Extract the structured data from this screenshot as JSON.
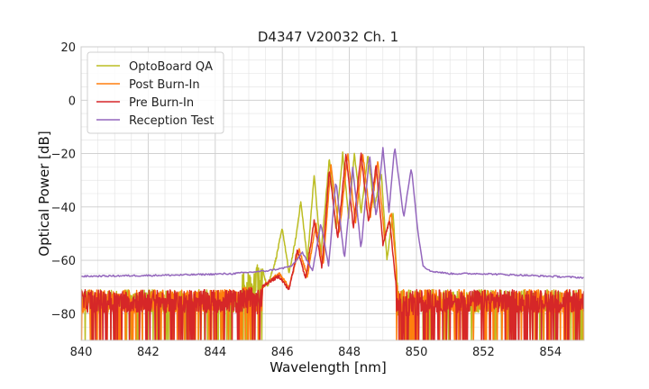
{
  "chart_data": {
    "type": "line",
    "title": "D4347 V20032 Ch. 1",
    "xlabel": "Wavelength [nm]",
    "ylabel": "Optical Power [dB]",
    "xlim": [
      840,
      855
    ],
    "ylim": [
      -90,
      20
    ],
    "xticks": [
      840,
      842,
      844,
      846,
      848,
      850,
      852,
      854
    ],
    "yticks": [
      20,
      0,
      -20,
      -40,
      -60,
      -80
    ],
    "grid": true,
    "minor_grid": true,
    "legend_position": "top-left",
    "series": [
      {
        "name": "OptoBoard QA",
        "color": "#bcbd22",
        "noise_floor": [
          -90,
          -71
        ],
        "peaks": [
          {
            "x": 845.3,
            "y": -58
          },
          {
            "x": 846.0,
            "y": -48
          },
          {
            "x": 846.55,
            "y": -38
          },
          {
            "x": 846.95,
            "y": -28
          },
          {
            "x": 847.4,
            "y": -22
          },
          {
            "x": 847.8,
            "y": -20
          },
          {
            "x": 848.15,
            "y": -20
          },
          {
            "x": 848.55,
            "y": -21
          },
          {
            "x": 848.95,
            "y": -27
          },
          {
            "x": 849.3,
            "y": -42
          }
        ],
        "points": [
          [
            840.0,
            -71
          ],
          [
            844.7,
            -68
          ],
          [
            844.9,
            -63
          ],
          [
            845.1,
            -66
          ],
          [
            845.3,
            -58
          ],
          [
            845.55,
            -70
          ],
          [
            845.8,
            -60
          ],
          [
            846.0,
            -48
          ],
          [
            846.2,
            -65
          ],
          [
            846.4,
            -52
          ],
          [
            846.55,
            -38
          ],
          [
            846.75,
            -60
          ],
          [
            846.95,
            -28
          ],
          [
            847.15,
            -58
          ],
          [
            847.4,
            -22
          ],
          [
            847.6,
            -48
          ],
          [
            847.8,
            -20
          ],
          [
            847.98,
            -44
          ],
          [
            848.15,
            -20
          ],
          [
            848.35,
            -42
          ],
          [
            848.55,
            -21
          ],
          [
            848.75,
            -40
          ],
          [
            848.95,
            -27
          ],
          [
            849.12,
            -60
          ],
          [
            849.3,
            -42
          ],
          [
            849.45,
            -72
          ],
          [
            849.7,
            -81
          ],
          [
            850.0,
            -85
          ]
        ]
      },
      {
        "name": "Post Burn-In",
        "color": "#ff7f0e",
        "noise_floor": [
          -90,
          -71
        ],
        "peaks": [
          {
            "x": 845.9,
            "y": -65
          },
          {
            "x": 846.5,
            "y": -56
          },
          {
            "x": 847.0,
            "y": -46
          },
          {
            "x": 847.45,
            "y": -24
          },
          {
            "x": 847.95,
            "y": -20
          },
          {
            "x": 848.4,
            "y": -20
          },
          {
            "x": 848.85,
            "y": -23
          },
          {
            "x": 849.25,
            "y": -42
          }
        ],
        "points": [
          [
            840.0,
            -72
          ],
          [
            845.4,
            -70
          ],
          [
            845.6,
            -68
          ],
          [
            845.9,
            -65
          ],
          [
            846.2,
            -70
          ],
          [
            846.5,
            -56
          ],
          [
            846.75,
            -66
          ],
          [
            847.0,
            -46
          ],
          [
            847.22,
            -62
          ],
          [
            847.45,
            -24
          ],
          [
            847.7,
            -50
          ],
          [
            847.95,
            -20
          ],
          [
            848.18,
            -46
          ],
          [
            848.4,
            -20
          ],
          [
            848.62,
            -44
          ],
          [
            848.85,
            -23
          ],
          [
            849.05,
            -52
          ],
          [
            849.25,
            -42
          ],
          [
            849.45,
            -70
          ],
          [
            849.6,
            -80
          ],
          [
            850.0,
            -84
          ]
        ]
      },
      {
        "name": "Pre Burn-In",
        "color": "#d62728",
        "noise_floor": [
          -90,
          -71
        ],
        "peaks": [
          {
            "x": 845.9,
            "y": -66
          },
          {
            "x": 846.45,
            "y": -56
          },
          {
            "x": 846.95,
            "y": -45
          },
          {
            "x": 847.4,
            "y": -26
          },
          {
            "x": 847.9,
            "y": -20
          },
          {
            "x": 848.35,
            "y": -20
          },
          {
            "x": 848.8,
            "y": -24
          },
          {
            "x": 849.2,
            "y": -45
          }
        ],
        "points": [
          [
            840.0,
            -72
          ],
          [
            845.4,
            -70
          ],
          [
            845.6,
            -68
          ],
          [
            845.9,
            -66
          ],
          [
            846.2,
            -71
          ],
          [
            846.45,
            -56
          ],
          [
            846.7,
            -67
          ],
          [
            846.95,
            -45
          ],
          [
            847.18,
            -63
          ],
          [
            847.4,
            -26
          ],
          [
            847.65,
            -52
          ],
          [
            847.9,
            -20
          ],
          [
            848.12,
            -48
          ],
          [
            848.35,
            -20
          ],
          [
            848.57,
            -46
          ],
          [
            848.8,
            -24
          ],
          [
            849.0,
            -54
          ],
          [
            849.2,
            -45
          ],
          [
            849.4,
            -70
          ],
          [
            849.55,
            -80
          ],
          [
            850.0,
            -84
          ]
        ]
      },
      {
        "name": "Reception Test",
        "color": "#9467bd",
        "noise_floor": [
          -66,
          -64
        ],
        "peaks": [
          {
            "x": 846.6,
            "y": -57
          },
          {
            "x": 847.15,
            "y": -46
          },
          {
            "x": 847.6,
            "y": -30
          },
          {
            "x": 848.1,
            "y": -25
          },
          {
            "x": 848.6,
            "y": -20
          },
          {
            "x": 849.0,
            "y": -18
          },
          {
            "x": 849.35,
            "y": -17
          },
          {
            "x": 849.85,
            "y": -25
          }
        ],
        "points": [
          [
            840.0,
            -66
          ],
          [
            843.0,
            -65.5
          ],
          [
            844.5,
            -65
          ],
          [
            845.5,
            -64
          ],
          [
            846.0,
            -63
          ],
          [
            846.3,
            -62
          ],
          [
            846.6,
            -57
          ],
          [
            846.9,
            -64
          ],
          [
            847.15,
            -46
          ],
          [
            847.38,
            -62
          ],
          [
            847.6,
            -30
          ],
          [
            847.85,
            -60
          ],
          [
            848.1,
            -25
          ],
          [
            848.35,
            -56
          ],
          [
            848.6,
            -20
          ],
          [
            848.8,
            -44
          ],
          [
            849.0,
            -18
          ],
          [
            849.18,
            -42
          ],
          [
            849.35,
            -17
          ],
          [
            849.62,
            -44
          ],
          [
            849.85,
            -25
          ],
          [
            850.05,
            -50
          ],
          [
            850.2,
            -62
          ],
          [
            850.4,
            -64
          ],
          [
            851.0,
            -65
          ],
          [
            852.0,
            -65
          ],
          [
            853.0,
            -65.5
          ],
          [
            854.0,
            -66
          ],
          [
            855.0,
            -66.5
          ]
        ]
      }
    ]
  }
}
